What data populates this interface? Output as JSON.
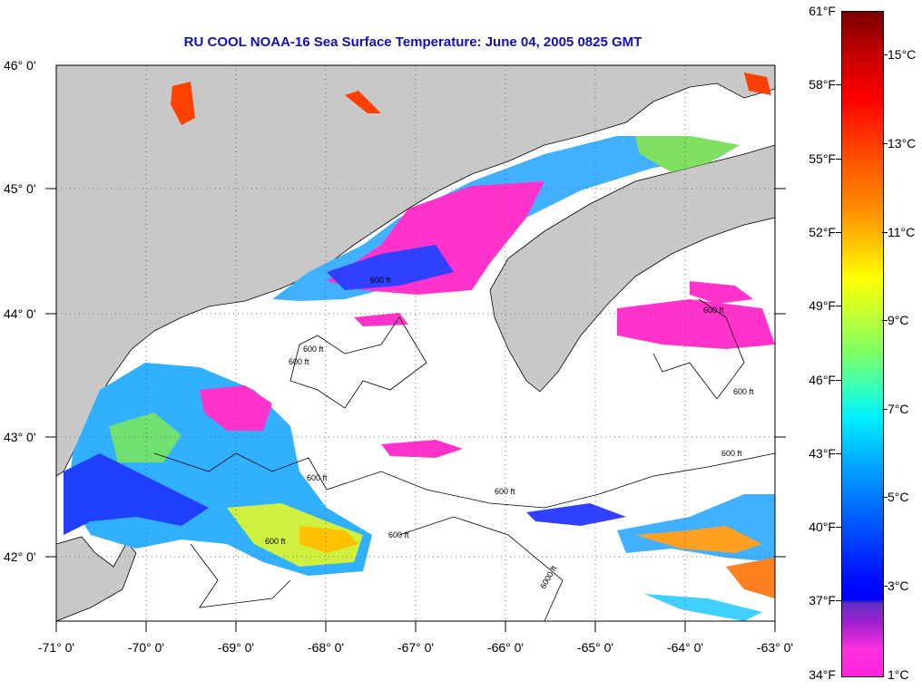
{
  "title": "RU COOL  NOAA-16  Sea Surface Temperature:  June 04, 2005 0825 GMT",
  "lat_labels": [
    "46° 0'",
    "45° 0'",
    "44° 0'",
    "43° 0'",
    "42° 0'"
  ],
  "lon_labels": [
    "-71° 0'",
    "-70° 0'",
    "-69° 0'",
    "-68° 0'",
    "-67° 0'",
    "-66° 0'",
    "-65° 0'",
    "-64° 0'",
    "-63° 0'"
  ],
  "contour_labels": [
    "600 ft",
    "600 ft",
    "600 ft",
    "600 ft",
    "600 ft",
    "600 ft",
    "600 ft",
    "600 ft",
    "600 ft",
    "600 ft",
    "6000 ft"
  ],
  "colorbar": {
    "fahrenheit": [
      "61°F",
      "58°F",
      "55°F",
      "52°F",
      "49°F",
      "46°F",
      "43°F",
      "40°F",
      "37°F",
      "34°F"
    ],
    "celsius": [
      "15°C",
      "13°C",
      "11°C",
      "9°C",
      "7°C",
      "5°C",
      "3°C",
      "1°C"
    ]
  },
  "colors": {
    "land": "#c8c8c8",
    "title": "#1010c0",
    "no_data": "#ffffff"
  }
}
